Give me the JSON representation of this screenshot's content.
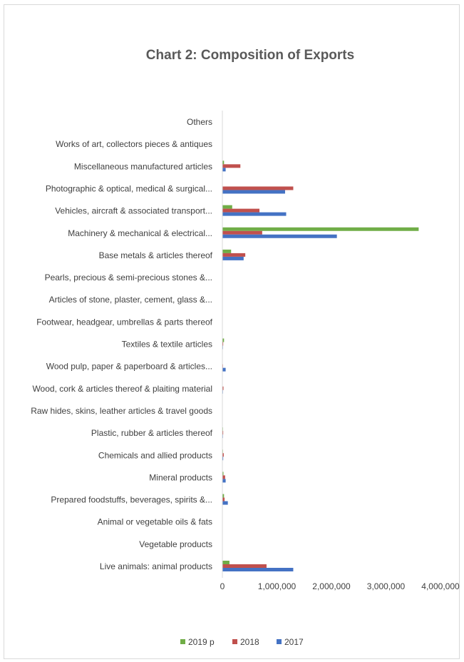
{
  "chart_data": {
    "type": "bar",
    "orientation": "horizontal",
    "title": "Chart 2: Composition of Exports",
    "xlabel": "",
    "ylabel": "",
    "xlim": [
      0,
      4000000
    ],
    "x_ticks": [
      "0",
      "1,000,000",
      "2,000,000",
      "3,000,000",
      "4,000,000"
    ],
    "grid": false,
    "legend_position": "bottom",
    "categories": [
      "Others",
      "Works of art, collectors pieces & antiques",
      "Miscellaneous manufactured articles",
      "Photographic & optical, medical & surgical...",
      "Vehicles, aircraft & associated transport...",
      "Machinery & mechanical & electrical...",
      "Base metals & articles thereof",
      "Pearls, precious & semi-precious stones &...",
      "Articles of stone, plaster, cement, glass &...",
      "Footwear, headgear, umbrellas & parts thereof",
      "Textiles & textile articles",
      "Wood pulp, paper & paperboard & articles...",
      "Wood, cork & articles thereof & plaiting material",
      "Raw hides, skins, leather articles & travel goods",
      "Plastic, rubber & articles thereof",
      "Chemicals and allied products",
      "Mineral products",
      "Prepared foodstuffs, beverages, spirits &...",
      "Animal or vegetable oils & fats",
      "Vegetable products",
      "Live animals: animal products"
    ],
    "series": [
      {
        "name": "2019 p",
        "color": "#70ad47",
        "values": [
          0,
          0,
          30000,
          0,
          180000,
          3600000,
          160000,
          0,
          0,
          0,
          30000,
          0,
          0,
          0,
          10000,
          10000,
          20000,
          30000,
          0,
          0,
          130000
        ]
      },
      {
        "name": "2018",
        "color": "#c0504d",
        "values": [
          0,
          0,
          330000,
          1300000,
          680000,
          730000,
          420000,
          0,
          0,
          0,
          15000,
          10000,
          20000,
          0,
          15000,
          25000,
          50000,
          40000,
          0,
          0,
          810000
        ]
      },
      {
        "name": "2017",
        "color": "#4472c4",
        "values": [
          0,
          0,
          60000,
          1150000,
          1170000,
          2100000,
          390000,
          0,
          0,
          0,
          10000,
          60000,
          10000,
          0,
          10000,
          15000,
          60000,
          100000,
          0,
          0,
          1300000
        ]
      }
    ]
  }
}
